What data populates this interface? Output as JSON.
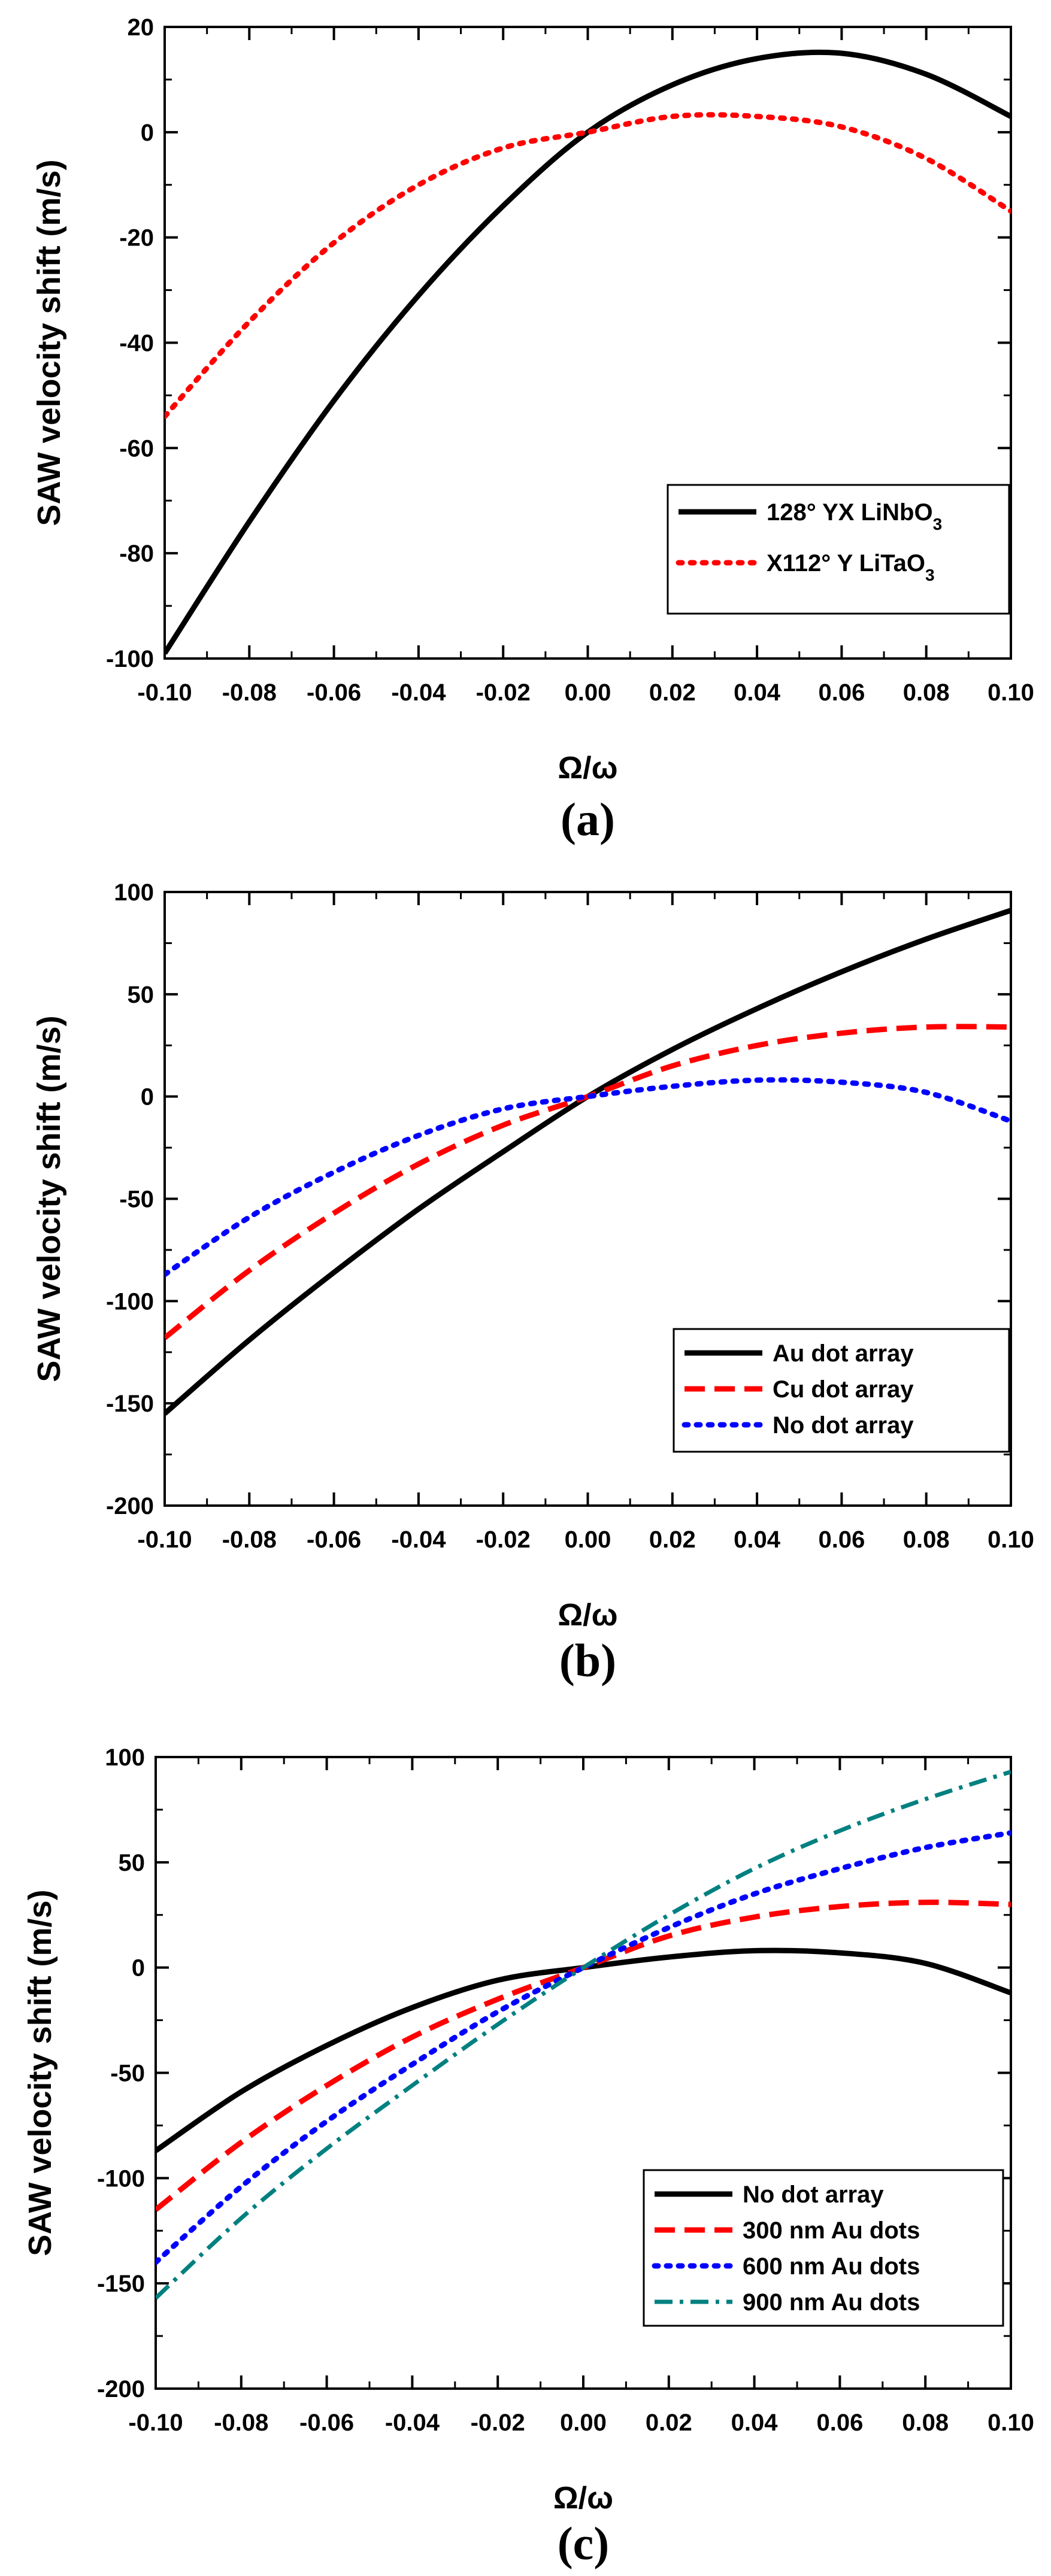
{
  "chart_data": [
    {
      "type": "line",
      "panel_label": "(a)",
      "xlabel": "Ω/ω",
      "ylabel": "SAW velocity shift (m/s)",
      "xlim": [
        -0.1,
        0.1
      ],
      "ylim": [
        -100,
        20
      ],
      "xticks": [
        "-0.10",
        "-0.08",
        "-0.06",
        "-0.04",
        "-0.02",
        "0.00",
        "0.02",
        "0.04",
        "0.06",
        "0.08",
        "0.10"
      ],
      "yticks": [
        "-100",
        "-80",
        "-60",
        "-40",
        "-20",
        "0",
        "20"
      ],
      "legend_position": "bottom-right",
      "x": [
        -0.1,
        -0.08,
        -0.06,
        -0.04,
        -0.02,
        0.0,
        0.02,
        0.04,
        0.06,
        0.08,
        0.1
      ],
      "series": [
        {
          "name": "128° YX LiNbO",
          "name_sub": "3",
          "color": "#000000",
          "style": "solid",
          "values": [
            -99,
            -74,
            -51,
            -31,
            -14,
            0,
            9,
            14,
            15,
            11,
            3
          ]
        },
        {
          "name": "X112° Y LiTaO",
          "name_sub": "3",
          "color": "#ff0000",
          "style": "dotted",
          "values": [
            -54,
            -36,
            -21,
            -10,
            -3,
            0,
            3,
            3,
            1,
            -5,
            -15
          ]
        }
      ]
    },
    {
      "type": "line",
      "panel_label": "(b)",
      "xlabel": "Ω/ω",
      "ylabel": "SAW velocity shift (m/s)",
      "xlim": [
        -0.1,
        0.1
      ],
      "ylim": [
        -200,
        100
      ],
      "xticks": [
        "-0.10",
        "-0.08",
        "-0.06",
        "-0.04",
        "-0.02",
        "0.00",
        "0.02",
        "0.04",
        "0.06",
        "0.08",
        "0.10"
      ],
      "yticks": [
        "-200",
        "-150",
        "-100",
        "-50",
        "0",
        "50",
        "100"
      ],
      "legend_position": "bottom-right",
      "x": [
        -0.1,
        -0.08,
        -0.06,
        -0.04,
        -0.02,
        0.0,
        0.02,
        0.04,
        0.06,
        0.08,
        0.1
      ],
      "series": [
        {
          "name": "Au dot array",
          "name_sub": "",
          "color": "#000000",
          "style": "solid",
          "values": [
            -155,
            -119,
            -86,
            -55,
            -27,
            0,
            23,
            43,
            61,
            77,
            91
          ]
        },
        {
          "name": "Cu dot array",
          "name_sub": "",
          "color": "#ff0000",
          "style": "dashed",
          "values": [
            -118,
            -85,
            -57,
            -33,
            -14,
            0,
            15,
            25,
            31,
            34,
            34
          ]
        },
        {
          "name": "No dot array",
          "name_sub": "",
          "color": "#0000ff",
          "style": "dotted",
          "values": [
            -87,
            -59,
            -37,
            -19,
            -6,
            0,
            5,
            8,
            7,
            2,
            -12
          ]
        }
      ]
    },
    {
      "type": "line",
      "panel_label": "(c)",
      "xlabel": "Ω/ω",
      "ylabel": "SAW velocity shift (m/s)",
      "xlim": [
        -0.1,
        0.1
      ],
      "ylim": [
        -200,
        100
      ],
      "xticks": [
        "-0.10",
        "-0.08",
        "-0.06",
        "-0.04",
        "-0.02",
        "0.00",
        "0.02",
        "0.04",
        "0.06",
        "0.08",
        "0.10"
      ],
      "yticks": [
        "-200",
        "-150",
        "-100",
        "-50",
        "0",
        "50",
        "100"
      ],
      "legend_position": "bottom-right",
      "x": [
        -0.1,
        -0.08,
        -0.06,
        -0.04,
        -0.02,
        0.0,
        0.02,
        0.04,
        0.06,
        0.08,
        0.1
      ],
      "series": [
        {
          "name": "No dot array",
          "name_sub": "",
          "color": "#000000",
          "style": "solid",
          "values": [
            -87,
            -59,
            -37,
            -19,
            -6,
            0,
            5,
            8,
            7,
            2,
            -12
          ]
        },
        {
          "name": "300 nm Au dots",
          "name_sub": "",
          "color": "#ff0000",
          "style": "dashed",
          "values": [
            -115,
            -83,
            -56,
            -33,
            -15,
            0,
            15,
            24,
            29,
            31,
            30
          ]
        },
        {
          "name": "600 nm Au dots",
          "name_sub": "",
          "color": "#0000ff",
          "style": "dotted",
          "values": [
            -140,
            -104,
            -73,
            -46,
            -21,
            0,
            19,
            35,
            47,
            57,
            64
          ]
        },
        {
          "name": "900 nm Au dots",
          "name_sub": "",
          "color": "#008080",
          "style": "dashdot",
          "values": [
            -157,
            -119,
            -86,
            -56,
            -27,
            0,
            25,
            47,
            65,
            80,
            93
          ]
        }
      ]
    }
  ]
}
